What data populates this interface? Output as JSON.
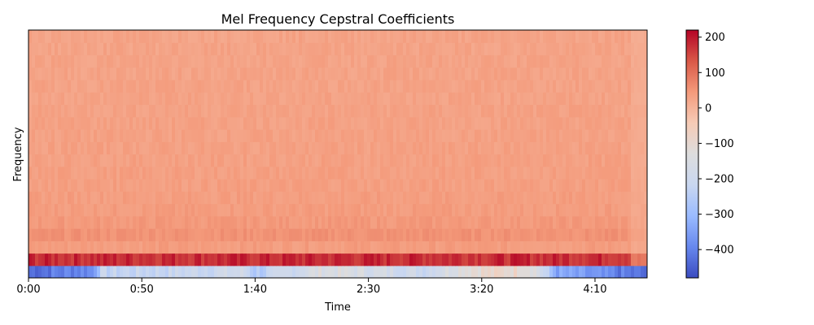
{
  "chart_data": {
    "type": "heatmap",
    "title": "Mel Frequency Cepstral Coefficients",
    "xlabel": "Time",
    "ylabel": "Frequency",
    "x_range_seconds": [
      0,
      273
    ],
    "x_ticks": [
      {
        "value": 0,
        "label": "0:00"
      },
      {
        "value": 50,
        "label": "0:50"
      },
      {
        "value": 100,
        "label": "1:40"
      },
      {
        "value": 150,
        "label": "2:30"
      },
      {
        "value": 200,
        "label": "3:20"
      },
      {
        "value": 250,
        "label": "4:10"
      }
    ],
    "y_ticks_shown": false,
    "n_coefficients": 20,
    "colormap": "coolwarm",
    "colormap_stops": [
      "#3b4cc0",
      "#6788ee",
      "#9abbff",
      "#c9d7f0",
      "#dddddd",
      "#f6cbb6",
      "#f49a7b",
      "#d95847",
      "#b40426"
    ],
    "colorbar": {
      "range": [
        -480,
        220
      ],
      "ticks": [
        {
          "value": 200,
          "label": "200"
        },
        {
          "value": 100,
          "label": "100"
        },
        {
          "value": 0,
          "label": "0"
        },
        {
          "value": -100,
          "label": "−100"
        },
        {
          "value": -200,
          "label": "−200"
        },
        {
          "value": -300,
          "label": "−300"
        },
        {
          "value": -400,
          "label": "−400"
        }
      ]
    },
    "coefficient_means": [
      -250,
      180,
      40,
      55,
      45,
      40,
      38,
      36,
      35,
      34,
      33,
      32,
      32,
      31,
      30,
      30,
      29,
      29,
      28,
      28
    ],
    "coefficient_0_profile": [
      {
        "t": 0,
        "v": -430
      },
      {
        "t": 28,
        "v": -380
      },
      {
        "t": 32,
        "v": -230
      },
      {
        "t": 70,
        "v": -210
      },
      {
        "t": 95,
        "v": -190
      },
      {
        "t": 100,
        "v": -260
      },
      {
        "t": 130,
        "v": -140
      },
      {
        "t": 175,
        "v": -200
      },
      {
        "t": 195,
        "v": -100
      },
      {
        "t": 218,
        "v": -90
      },
      {
        "t": 223,
        "v": -120
      },
      {
        "t": 233,
        "v": -340
      },
      {
        "t": 273,
        "v": -440
      }
    ]
  }
}
